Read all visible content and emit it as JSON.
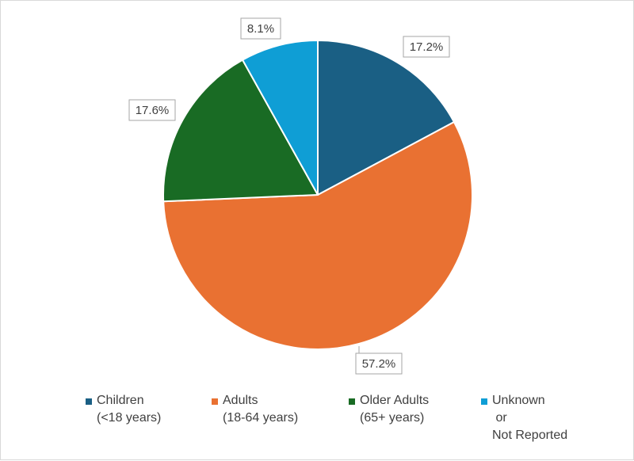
{
  "chart_data": {
    "type": "pie",
    "title": "",
    "start_angle_deg": 0,
    "direction": "clockwise",
    "legend_position": "bottom",
    "slices": [
      {
        "name": "Children\n(<18 years)",
        "value": 17.2,
        "label": "17.2%",
        "color": "#1a5f84"
      },
      {
        "name": "Adults\n(18-64 years)",
        "value": 57.2,
        "label": "57.2%",
        "color": "#e97132"
      },
      {
        "name": "Older Adults\n(65+ years)",
        "value": 17.6,
        "label": "17.6%",
        "color": "#196b24"
      },
      {
        "name": "Unknown\n or\nNot Reported",
        "value": 8.1,
        "label": "8.1%",
        "color": "#0f9ed5"
      }
    ]
  }
}
